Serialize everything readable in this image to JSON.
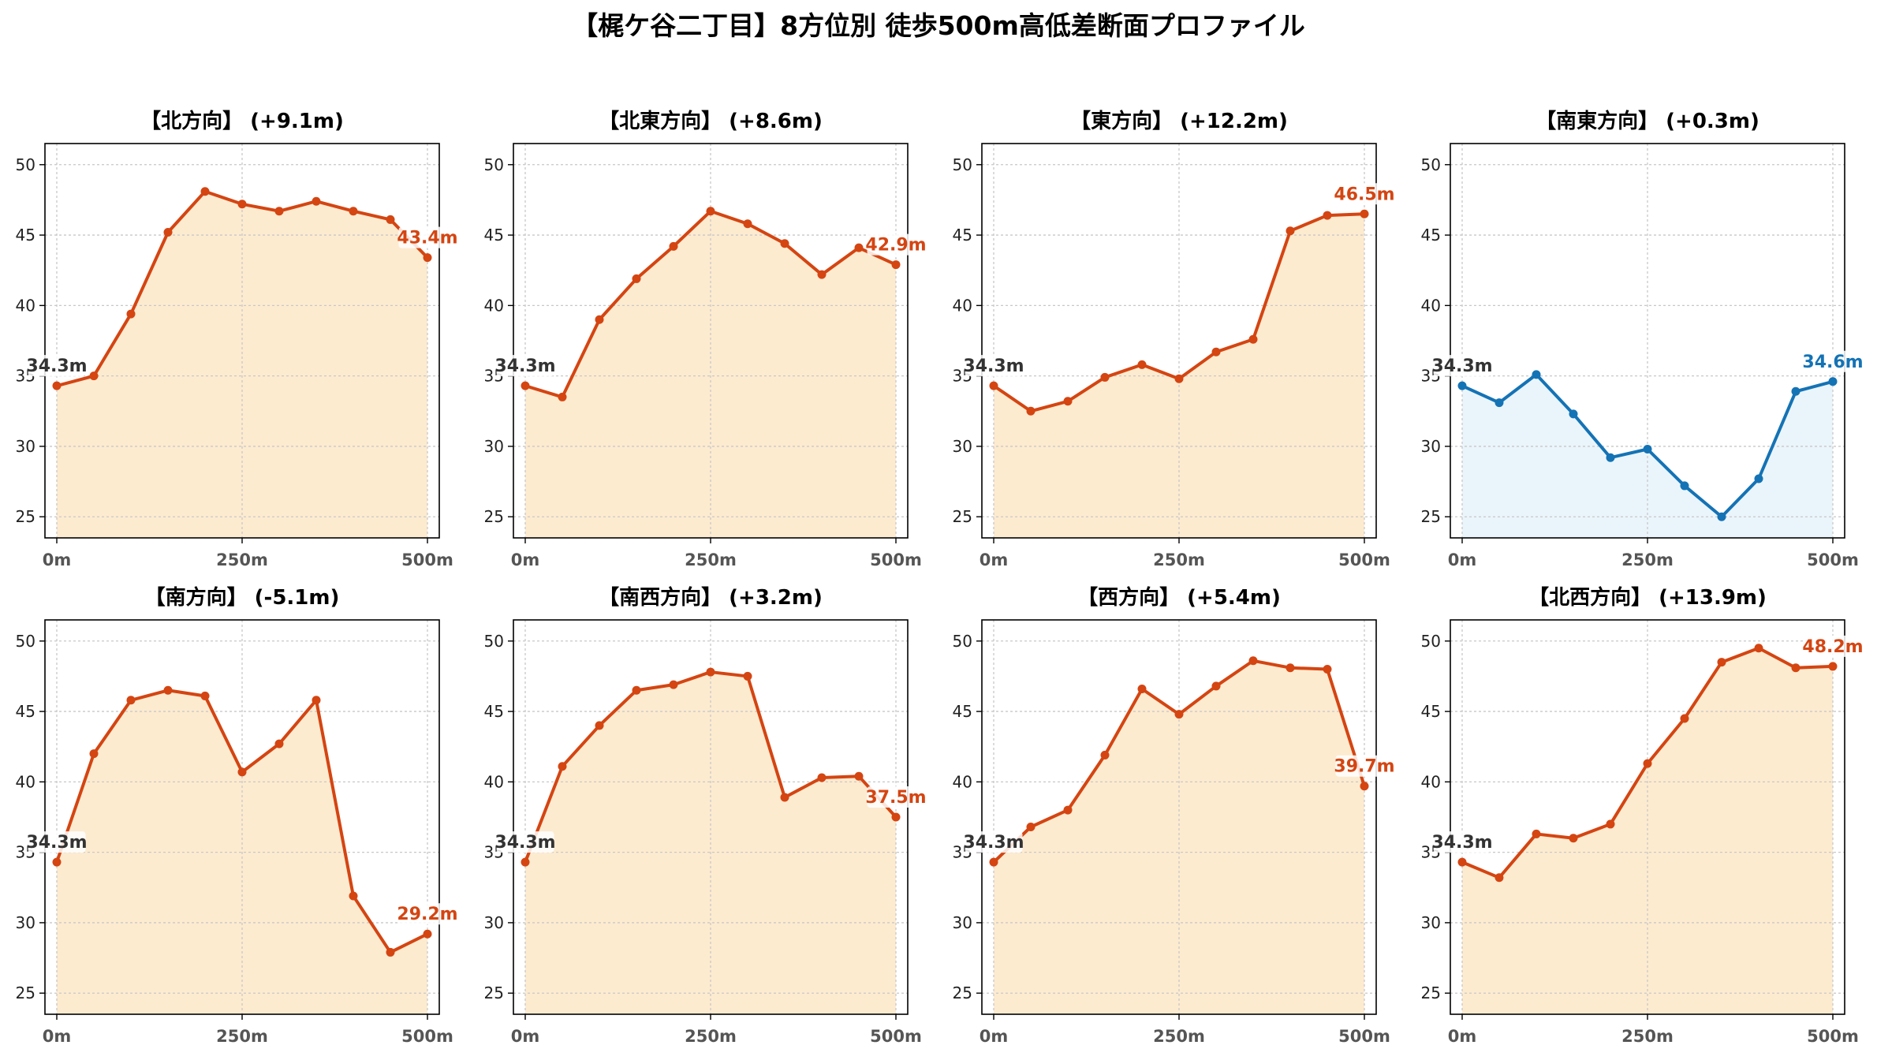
{
  "title": "【梶ケ谷二丁目】8方位別 徒歩500m高低差断面プロファイル",
  "colors": {
    "up_line": "#d44512",
    "up_fill": "#fdebd0",
    "down_line": "#1473b5",
    "down_fill": "#eaf5fb",
    "start_label": "#333333",
    "grid": "#c8c8c8"
  },
  "chart_data": [
    {
      "type": "area",
      "title": "【北方向】 (+9.1m)",
      "trend": "up",
      "x": [
        0,
        50,
        100,
        150,
        200,
        250,
        300,
        350,
        400,
        450,
        500
      ],
      "y": [
        34.3,
        35.0,
        39.4,
        45.2,
        48.1,
        47.2,
        46.7,
        47.4,
        46.7,
        46.1,
        43.4
      ],
      "start_label": "34.3m",
      "end_label": "43.4m",
      "xticks": [
        0,
        250,
        500
      ],
      "xtick_labels": [
        "0m",
        "250m",
        "500m"
      ],
      "yticks": [
        25,
        30,
        35,
        40,
        45,
        50
      ],
      "ylim": [
        23.5,
        51.5
      ],
      "grid": true
    },
    {
      "type": "area",
      "title": "【北東方向】 (+8.6m)",
      "trend": "up",
      "x": [
        0,
        50,
        100,
        150,
        200,
        250,
        300,
        350,
        400,
        450,
        500
      ],
      "y": [
        34.3,
        33.5,
        39.0,
        41.9,
        44.2,
        46.7,
        45.8,
        44.4,
        42.2,
        44.1,
        42.9
      ],
      "start_label": "34.3m",
      "end_label": "42.9m",
      "xticks": [
        0,
        250,
        500
      ],
      "xtick_labels": [
        "0m",
        "250m",
        "500m"
      ],
      "yticks": [
        25,
        30,
        35,
        40,
        45,
        50
      ],
      "ylim": [
        23.5,
        51.5
      ],
      "grid": true
    },
    {
      "type": "area",
      "title": "【東方向】 (+12.2m)",
      "trend": "up",
      "x": [
        0,
        50,
        100,
        150,
        200,
        250,
        300,
        350,
        400,
        450,
        500
      ],
      "y": [
        34.3,
        32.5,
        33.2,
        34.9,
        35.8,
        34.8,
        36.7,
        37.6,
        45.3,
        46.4,
        46.5
      ],
      "start_label": "34.3m",
      "end_label": "46.5m",
      "xticks": [
        0,
        250,
        500
      ],
      "xtick_labels": [
        "0m",
        "250m",
        "500m"
      ],
      "yticks": [
        25,
        30,
        35,
        40,
        45,
        50
      ],
      "ylim": [
        23.5,
        51.5
      ],
      "grid": true
    },
    {
      "type": "area",
      "title": "【南東方向】 (+0.3m)",
      "trend": "flat",
      "x": [
        0,
        50,
        100,
        150,
        200,
        250,
        300,
        350,
        400,
        450,
        500
      ],
      "y": [
        34.3,
        33.1,
        35.1,
        32.3,
        29.2,
        29.8,
        27.2,
        25.0,
        27.7,
        33.9,
        34.6
      ],
      "start_label": "34.3m",
      "end_label": "34.6m",
      "xticks": [
        0,
        250,
        500
      ],
      "xtick_labels": [
        "0m",
        "250m",
        "500m"
      ],
      "yticks": [
        25,
        30,
        35,
        40,
        45,
        50
      ],
      "ylim": [
        23.5,
        51.5
      ],
      "grid": true
    },
    {
      "type": "area",
      "title": "【南方向】 (-5.1m)",
      "trend": "down",
      "x": [
        0,
        50,
        100,
        150,
        200,
        250,
        300,
        350,
        400,
        450,
        500
      ],
      "y": [
        34.3,
        42.0,
        45.8,
        46.5,
        46.1,
        40.7,
        42.7,
        45.8,
        31.9,
        27.9,
        29.2
      ],
      "start_label": "34.3m",
      "end_label": "29.2m",
      "xticks": [
        0,
        250,
        500
      ],
      "xtick_labels": [
        "0m",
        "250m",
        "500m"
      ],
      "yticks": [
        25,
        30,
        35,
        40,
        45,
        50
      ],
      "ylim": [
        23.5,
        51.5
      ],
      "grid": true
    },
    {
      "type": "area",
      "title": "【南西方向】 (+3.2m)",
      "trend": "up",
      "x": [
        0,
        50,
        100,
        150,
        200,
        250,
        300,
        350,
        400,
        450,
        500
      ],
      "y": [
        34.3,
        41.1,
        44.0,
        46.5,
        46.9,
        47.8,
        47.5,
        38.9,
        40.3,
        40.4,
        37.5
      ],
      "start_label": "34.3m",
      "end_label": "37.5m",
      "xticks": [
        0,
        250,
        500
      ],
      "xtick_labels": [
        "0m",
        "250m",
        "500m"
      ],
      "yticks": [
        25,
        30,
        35,
        40,
        45,
        50
      ],
      "ylim": [
        23.5,
        51.5
      ],
      "grid": true
    },
    {
      "type": "area",
      "title": "【西方向】 (+5.4m)",
      "trend": "up",
      "x": [
        0,
        50,
        100,
        150,
        200,
        250,
        300,
        350,
        400,
        450,
        500
      ],
      "y": [
        34.3,
        36.8,
        38.0,
        41.9,
        46.6,
        44.8,
        46.8,
        48.6,
        48.1,
        48.0,
        39.7
      ],
      "start_label": "34.3m",
      "end_label": "39.7m",
      "xticks": [
        0,
        250,
        500
      ],
      "xtick_labels": [
        "0m",
        "250m",
        "500m"
      ],
      "yticks": [
        25,
        30,
        35,
        40,
        45,
        50
      ],
      "ylim": [
        23.5,
        51.5
      ],
      "grid": true
    },
    {
      "type": "area",
      "title": "【北西方向】 (+13.9m)",
      "trend": "up",
      "x": [
        0,
        50,
        100,
        150,
        200,
        250,
        300,
        350,
        400,
        450,
        500
      ],
      "y": [
        34.3,
        33.2,
        36.3,
        36.0,
        37.0,
        41.3,
        44.5,
        48.5,
        49.5,
        48.1,
        48.2
      ],
      "start_label": "34.3m",
      "end_label": "48.2m",
      "xticks": [
        0,
        250,
        500
      ],
      "xtick_labels": [
        "0m",
        "250m",
        "500m"
      ],
      "yticks": [
        25,
        30,
        35,
        40,
        45,
        50
      ],
      "ylim": [
        23.5,
        51.5
      ],
      "grid": true
    }
  ]
}
